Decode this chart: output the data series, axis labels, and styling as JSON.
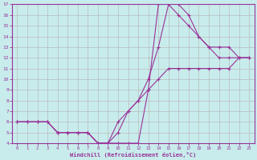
{
  "xlabel": "Windchill (Refroidissement éolien,°C)",
  "bg_color": "#c8ecec",
  "line_color": "#993399",
  "grid_color": "#bbbbbb",
  "xlim": [
    -0.5,
    23.5
  ],
  "ylim": [
    4,
    17
  ],
  "xticks": [
    0,
    1,
    2,
    3,
    4,
    5,
    6,
    7,
    8,
    9,
    10,
    11,
    12,
    13,
    14,
    15,
    16,
    17,
    18,
    19,
    20,
    21,
    22,
    23
  ],
  "yticks": [
    4,
    5,
    6,
    7,
    8,
    9,
    10,
    11,
    12,
    13,
    14,
    15,
    16,
    17
  ],
  "line1_x": [
    0,
    1,
    2,
    3,
    4,
    5,
    6,
    7,
    8,
    9,
    10,
    11,
    12,
    13,
    14,
    15,
    16,
    17,
    18,
    19,
    20,
    21,
    22,
    23
  ],
  "line1_y": [
    6,
    6,
    6,
    6,
    5,
    5,
    5,
    5,
    4,
    4,
    4,
    4,
    4,
    9,
    17,
    17,
    17,
    16,
    14,
    13,
    12,
    12,
    12,
    12
  ],
  "line2_x": [
    0,
    1,
    2,
    3,
    4,
    5,
    6,
    7,
    8,
    9,
    10,
    11,
    12,
    13,
    14,
    15,
    16,
    17,
    18,
    19,
    20,
    21,
    22,
    23
  ],
  "line2_y": [
    6,
    6,
    6,
    6,
    5,
    5,
    5,
    5,
    4,
    4,
    5,
    7,
    8,
    10,
    13,
    17,
    16,
    15,
    14,
    13,
    13,
    13,
    12,
    12
  ],
  "line3_x": [
    0,
    1,
    2,
    3,
    4,
    5,
    6,
    7,
    8,
    9,
    10,
    11,
    12,
    13,
    14,
    15,
    16,
    17,
    18,
    19,
    20,
    21,
    22,
    23
  ],
  "line3_y": [
    6,
    6,
    6,
    6,
    5,
    5,
    5,
    5,
    4,
    4,
    6,
    7,
    8,
    9,
    10,
    11,
    11,
    11,
    11,
    11,
    11,
    11,
    12,
    12
  ]
}
